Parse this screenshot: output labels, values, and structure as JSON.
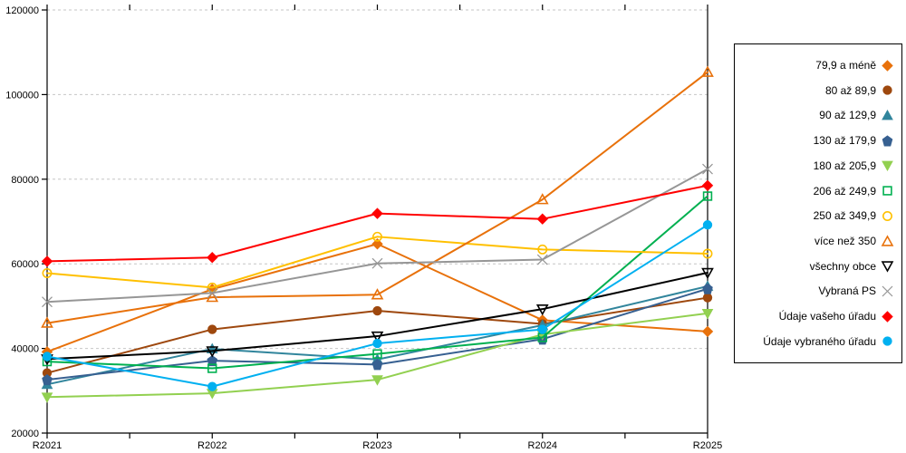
{
  "chart_data": {
    "type": "line",
    "title": "",
    "xlabel": "",
    "ylabel": "",
    "x_categories": [
      "R2021",
      "R2022",
      "R2023",
      "R2024",
      "R2025"
    ],
    "y_axis": {
      "min": 20000,
      "max": 120000,
      "step": 20000,
      "tick_labels": [
        "20000",
        "40000",
        "60000",
        "80000",
        "100000",
        "120000"
      ]
    },
    "grid": "horizontal-dashed",
    "legend_position": "right",
    "series": [
      {
        "name": "79,9 a méně",
        "color": "#E8710A",
        "marker": "diamond",
        "filled": true,
        "values": [
          39200,
          54000,
          64700,
          46700,
          44000
        ]
      },
      {
        "name": "80 až 89,9",
        "color": "#9E480E",
        "marker": "circle",
        "filled": true,
        "values": [
          34200,
          44500,
          48900,
          45800,
          52000
        ]
      },
      {
        "name": "90 až 129,9",
        "color": "#31859C",
        "marker": "triangle-up",
        "filled": true,
        "values": [
          31500,
          39900,
          37400,
          45500,
          54700
        ]
      },
      {
        "name": "130 až 179,9",
        "color": "#376091",
        "marker": "pentagon",
        "filled": true,
        "values": [
          32600,
          37100,
          36200,
          42200,
          54100
        ]
      },
      {
        "name": "180 až 205,9",
        "color": "#92D050",
        "marker": "triangle-down",
        "filled": true,
        "values": [
          28500,
          29400,
          32600,
          43300,
          48300
        ]
      },
      {
        "name": "206 až 249,9",
        "color": "#00B050",
        "marker": "square",
        "filled": false,
        "values": [
          36900,
          35300,
          38700,
          42600,
          76000
        ]
      },
      {
        "name": "250 až 349,9",
        "color": "#FFC000",
        "marker": "circle",
        "filled": false,
        "values": [
          57800,
          54400,
          66400,
          63400,
          62400
        ]
      },
      {
        "name": "více než 350",
        "color": "#E8710A",
        "marker": "triangle-up",
        "filled": false,
        "values": [
          46000,
          52100,
          52700,
          75200,
          105300
        ]
      },
      {
        "name": "všechny obce",
        "color": "#000000",
        "marker": "triangle-down",
        "filled": false,
        "values": [
          37500,
          39400,
          42900,
          49300,
          57900
        ]
      },
      {
        "name": "Vybraná PS",
        "color": "#969696",
        "marker": "x",
        "filled": false,
        "values": [
          51000,
          53100,
          60100,
          61000,
          82400
        ]
      },
      {
        "name": "Údaje vašeho úřadu",
        "color": "#FF0000",
        "marker": "diamond",
        "filled": true,
        "values": [
          60600,
          61500,
          71900,
          70600,
          78500
        ]
      },
      {
        "name": "Údaje vybraného úřadu",
        "color": "#00B0F0",
        "marker": "circle",
        "filled": true,
        "values": [
          38100,
          31000,
          41200,
          44500,
          69200
        ]
      }
    ]
  },
  "colors": {
    "background": "#FFFFFF",
    "axis": "#000000",
    "grid": "#C6C6C6",
    "tick_text": "#000000"
  }
}
